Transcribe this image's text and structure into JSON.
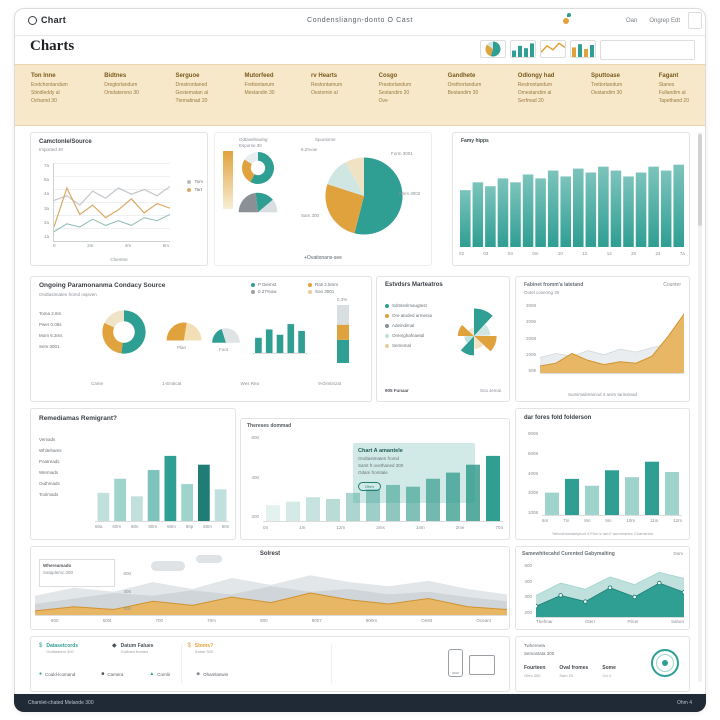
{
  "theme": {
    "teal": "#2f9e93",
    "teal_dark": "#1f7d76",
    "teal_light": "#bfe0dc",
    "orange": "#e0a23c",
    "band": "#f6e8c8"
  },
  "header": {
    "logo_text": "Chart",
    "center_title": "Condensliangn-donto O Cast",
    "link_1": "Oan",
    "link_2": "Ongrep Edt"
  },
  "subheader": {
    "title": "Charts"
  },
  "categories": [
    {
      "heading": "Ton Inne",
      "a": "Eretchontandum",
      "b": "Stindleddy al",
      "c": "Ochamd 30"
    },
    {
      "heading": "Bidtnes",
      "a": "Dregtorlandum",
      "b": "Omdaterono 30",
      "c": ""
    },
    {
      "heading": "Serguoe",
      "a": "Drestrontaned",
      "b": "Gestematan al",
      "c": "Ttematinad 20"
    },
    {
      "heading": "Mutorfeed",
      "a": "Frettontanum",
      "b": "Mestandin 30",
      "c": ""
    },
    {
      "heading": "rv Hearts",
      "a": "Restontamum",
      "b": "Oestomin al",
      "c": ""
    },
    {
      "heading": "Cosgo",
      "a": "Prestorlandum",
      "b": "Sestandim 20",
      "c": "Ove"
    },
    {
      "heading": "Gandhete",
      "a": "Orethortandum",
      "b": "Bestandim 30",
      "c": ""
    },
    {
      "heading": "Odlongy had",
      "a": "Restrontandum",
      "b": "Omestandim al",
      "c": "Serfmad 20"
    },
    {
      "heading": "Sputtoase",
      "a": "Trettortandum",
      "b": "Oestandim 30",
      "c": ""
    },
    {
      "heading": "Fagant",
      "a": "Stanes",
      "b": "Fullandim al",
      "c": "Tapethand 20"
    }
  ],
  "thumbs": {
    "t1": {
      "type": "pie",
      "inner": 0,
      "slices": [
        {
          "v": 55,
          "c": "#2f9e93"
        },
        {
          "v": 30,
          "c": "#e0a23c"
        },
        {
          "v": 15,
          "c": "#cfe6e2"
        }
      ]
    },
    "t2": {
      "type": "bars",
      "vw": 24,
      "vh": 16,
      "ymax": 100,
      "gap": 1,
      "color": "#2f9e93",
      "values": [
        40,
        70,
        55,
        85
      ]
    },
    "t3": {
      "type": "line",
      "vw": 24,
      "vh": 16,
      "ymax": 100,
      "series": [
        {
          "color": "#e0a23c",
          "w": 1.5,
          "values": [
            30,
            70,
            45,
            85,
            60
          ]
        }
      ]
    },
    "t4": {
      "type": "bars",
      "vw": 24,
      "vh": 16,
      "ymax": 100,
      "gap": 1,
      "colors": [
        "#e0a23c",
        "#2f9e93"
      ],
      "values": [
        60,
        80,
        50,
        75
      ]
    }
  },
  "cards": {
    "a": {
      "title": "Camctonle/Source",
      "subtitle": "Imported 30",
      "bottom": "Chemtre",
      "yticks": [
        "7a",
        "5a",
        "4a",
        "3a",
        "2a",
        "1a"
      ],
      "xticks": [
        "0",
        "2m",
        "4m",
        "6m"
      ],
      "legend": [
        {
          "c": "#b9bdc2",
          "t": "Tom"
        },
        {
          "c": "#d9a964",
          "t": "Tart"
        }
      ],
      "chart": {
        "type": "line",
        "vw": 116,
        "vh": 78,
        "ymax": 100,
        "series": [
          {
            "color": "#c2c6ca",
            "w": 1.2,
            "values": [
              52,
              58,
              46,
              64,
              55,
              68,
              60,
              66,
              58,
              70
            ]
          },
          {
            "color": "#d9a964",
            "w": 1.2,
            "values": [
              18,
              68,
              34,
              46,
              30,
              40,
              54,
              36,
              48,
              42
            ]
          },
          {
            "color": "#8fbcb6",
            "w": 1,
            "values": [
              12,
              22,
              18,
              28,
              20,
              26,
              20,
              30,
              26,
              34
            ]
          }
        ]
      }
    },
    "b": {
      "label1": "Odtaseltowing",
      "label2": "Esporse 30",
      "top": "Spuntome",
      "caption": "+Ovationans-see",
      "labels": [
        "6.2%ow",
        "Form 3001",
        "8mm 3002",
        "Sam 300"
      ],
      "vbar": {
        "type": "bars",
        "vw": 10,
        "vh": 58,
        "ymax": 100,
        "gap": 0,
        "grad": [
          "#e0a23c",
          "#f8eed6"
        ],
        "values": [
          100
        ]
      },
      "donut": {
        "type": "pie",
        "inner": 0.45,
        "slices": [
          {
            "v": 58,
            "c": "#2f9e93"
          },
          {
            "v": 26,
            "c": "#e0a23c"
          },
          {
            "v": 16,
            "c": "#e8edef"
          }
        ]
      },
      "gauge": {
        "type": "gauge",
        "slices": [
          {
            "v": 46,
            "c": "#8a9096"
          },
          {
            "v": 32,
            "c": "#2f9e93"
          },
          {
            "v": 22,
            "c": "#d9dee1"
          }
        ]
      },
      "pie": {
        "type": "pie",
        "inner": 0,
        "slices": [
          {
            "v": 54,
            "c": "#2f9e93"
          },
          {
            "v": 26,
            "c": "#e0a23c"
          },
          {
            "v": 12,
            "c": "#cfe6e2"
          },
          {
            "v": 8,
            "c": "#f0e2c4"
          }
        ]
      }
    },
    "c": {
      "title": "Famy hipps",
      "xticks": [
        "02",
        "03",
        "04",
        "0m",
        "10",
        "12",
        "14",
        "20",
        "24",
        "7a"
      ],
      "chart": {
        "type": "bars",
        "vw": 226,
        "vh": 98,
        "ymax": 100,
        "gap": 1,
        "grad": [
          "#7cc4bc",
          "#2f9e93"
        ],
        "values": [
          58,
          66,
          62,
          70,
          66,
          74,
          70,
          78,
          72,
          80,
          76,
          82,
          78,
          72,
          76,
          82,
          78,
          84
        ]
      }
    },
    "d": {
      "title": "Ongoing Paramonanma Condacy Source",
      "subtitle": "Ondtastmaten fromd ospiven",
      "legend": [
        {
          "c": "#2f9e93",
          "t": "P Diemst"
        },
        {
          "c": "#e0a23c",
          "t": "Rati 2.5mm"
        },
        {
          "c": "#9aa0a5",
          "t": "0.27%ow"
        },
        {
          "c": "#e6cf9a",
          "t": "Son 3001"
        }
      ],
      "side": [
        "Toma 2.6m",
        "Pwer 0.05s",
        "Mom 6.3ms",
        "Sem 3001"
      ],
      "gauge1_label": "Plan",
      "gauge2_label": "Foot",
      "stack_label": "0.3%",
      "xticks": [
        "Came",
        "1-Emticat",
        "Wes Rea",
        "9-Dimtinzat"
      ],
      "donut": {
        "type": "pie",
        "inner": 0.5,
        "slices": [
          {
            "v": 52,
            "c": "#2f9e93"
          },
          {
            "v": 30,
            "c": "#e0a23c"
          },
          {
            "v": 18,
            "c": "#efe3c8"
          }
        ]
      },
      "gauge1": {
        "type": "gauge",
        "slices": [
          {
            "v": 55,
            "c": "#e0a23c"
          },
          {
            "v": 45,
            "c": "#f3dfb6"
          }
        ]
      },
      "gauge2": {
        "type": "gauge",
        "slices": [
          {
            "v": 40,
            "c": "#2f9e93"
          },
          {
            "v": 60,
            "c": "#dfe3e5"
          }
        ]
      },
      "bars": {
        "type": "bars",
        "vw": 52,
        "vh": 36,
        "ymax": 100,
        "gap": 2,
        "color": "#2f9e93",
        "values": [
          40,
          62,
          48,
          76,
          58
        ]
      },
      "stack": {
        "type": "stack",
        "vw": 12,
        "vh": 56,
        "segs": [
          {
            "v": 40,
            "c": "#2f9e93"
          },
          {
            "v": 26,
            "c": "#e0a23c"
          },
          {
            "v": 34,
            "c": "#d9dee1"
          }
        ]
      }
    },
    "e": {
      "title": "Estvdsrs Marteatros",
      "caption": "905 Funaar",
      "caption2": "Sca Jemai",
      "bullets": [
        {
          "c": "#2f9e93",
          "t": "Sdmteslmaugtest"
        },
        {
          "c": "#e0a23c",
          "t": "Ore atoded armenia"
        },
        {
          "c": "#8a9096",
          "t": "Adeindimal"
        },
        {
          "c": "#bfe0dc",
          "t": "Oremghafnaetal"
        },
        {
          "c": "#e6cf9a",
          "t": "Sememal"
        }
      ],
      "rose": {
        "type": "rose",
        "max": 36,
        "values": [
          34,
          20,
          28,
          16,
          24,
          12,
          20,
          10
        ],
        "colors": [
          "#2f9e93",
          "#cfe6e2",
          "#e0a23c",
          "#f0e2c4",
          "#2f9e93",
          "#bfe0dc",
          "#e0a23c",
          "#efe8da"
        ]
      }
    },
    "f": {
      "corner": "Counter",
      "title": "Fabinet fromm'a latetand",
      "subtitle": "Ootel covering 30",
      "yticks": [
        "3008",
        "2006",
        "2008",
        "1006",
        "508"
      ],
      "caption": "Sumimalimamod 4 anim tarinsinad",
      "chart": {
        "type": "line",
        "vw": 144,
        "vh": 70,
        "ymax": 100,
        "series": [
          {
            "fill": "#e9edef",
            "color": "#d4d9dc",
            "w": 0.8,
            "values": [
              22,
              28,
              24,
              32,
              26,
              34,
              30,
              36,
              42,
              50
            ]
          },
          {
            "fill": "#e8b765",
            "color": "#d1922f",
            "w": 1,
            "values": [
              10,
              14,
              28,
              18,
              12,
              16,
              14,
              24,
              52,
              84
            ]
          }
        ]
      }
    },
    "g": {
      "title": "Remediamas Remigrant?",
      "rows": [
        "Vemads",
        "Whitehams",
        "Poatreads",
        "Wermads",
        "Outhmads",
        "Toolmads"
      ],
      "xticks": [
        "60a",
        "60m",
        "60n",
        "80m",
        "60m",
        "60p",
        "60m",
        "60s"
      ],
      "chart": {
        "type": "bars",
        "vw": 134,
        "vh": 88,
        "ymax": 100,
        "gap": 2.5,
        "colors": [
          "#bfe0dc",
          "#9fd4cd",
          "#bfe0dc",
          "#7cc4bc",
          "#2f9e93",
          "#9fd4cd",
          "#1f7d76",
          "#bfe0dc"
        ],
        "values": [
          32,
          48,
          28,
          58,
          74,
          42,
          64,
          36
        ]
      }
    },
    "h": {
      "top": "Thereses dommad",
      "panel_title": "Chart A amantele",
      "panel_lines": [
        "Ondtastmaten fromd",
        "Samt ft ovethaned 300",
        "Odam fromtale"
      ],
      "panel_pill": "Ohm",
      "yticks": [
        "600",
        "400",
        "200"
      ],
      "xticks": [
        "04",
        "1m",
        "12m",
        "2ms",
        "14m",
        "2me",
        "704"
      ],
      "chart": {
        "type": "bars",
        "vw": 240,
        "vh": 88,
        "ymax": 100,
        "gap": 3,
        "colors": [
          "#e3f1ef",
          "#d5eae7",
          "#c7e3df",
          "#b9dcd7",
          "#abd5cf",
          "#9dcec7",
          "#8fc7bf",
          "#81c0b7",
          "#73b9af",
          "#65b2a7",
          "#57ab9f",
          "#2f9e93"
        ],
        "values": [
          18,
          22,
          27,
          25,
          32,
          36,
          41,
          39,
          48,
          55,
          64,
          74
        ]
      }
    },
    "i": {
      "title": "dar fores fold folderson",
      "yticks": [
        "9008",
        "6008",
        "4008",
        "3008",
        "1008"
      ],
      "xticks": [
        "6m",
        "7m",
        "8m",
        "9m",
        "10m",
        "11m",
        "12m"
      ],
      "caption": "Yellowhamlaleyfoot 4 Fhm k ram? aummartec Chamlems",
      "chart": {
        "type": "bars",
        "vw": 140,
        "vh": 86,
        "ymax": 100,
        "gap": 3,
        "colors": [
          "#9fd4cd",
          "#2f9e93",
          "#9fd4cd",
          "#2f9e93",
          "#9fd4cd",
          "#2f9e93",
          "#9fd4cd"
        ],
        "values": [
          26,
          42,
          34,
          52,
          44,
          62,
          50
        ]
      }
    },
    "j": {
      "title": "Solrest",
      "box": [
        "Whereamado",
        "Sataplemc 300"
      ],
      "yticks": [
        "600",
        "400",
        "200"
      ],
      "xticks": [
        "600",
        "600t",
        "700",
        "70m",
        "800",
        "8007",
        "900m",
        "Oe84",
        "Oceant"
      ],
      "chart": {
        "type": "line",
        "vw": 472,
        "vh": 48,
        "ymax": 70,
        "series": [
          {
            "fill": "#e2e6e8",
            "values": [
              28,
              40,
              34,
              48,
              38,
              54,
              44,
              58,
              48,
              42,
              50,
              38,
              30
            ]
          },
          {
            "fill": "#cfd5d8",
            "values": [
              16,
              24,
              32,
              28,
              36,
              30,
              42,
              34,
              38,
              30,
              34,
              26,
              20
            ]
          },
          {
            "fill": "#e8b765",
            "color": "#d1922f",
            "w": 1,
            "values": [
              6,
              12,
              8,
              20,
              14,
              26,
              18,
              32,
              22,
              16,
              24,
              12,
              8
            ]
          }
        ]
      }
    },
    "k": {
      "title": "Samewhitecahd Curented Gabymalting",
      "corner": "Dam",
      "yticks": [
        "600",
        "400",
        "300",
        "200"
      ],
      "xticks": [
        "Thefmar",
        "Oterr",
        "Pilcer",
        "Sahen"
      ],
      "chart": {
        "type": "line",
        "vw": 148,
        "vh": 54,
        "ymax": 70,
        "series": [
          {
            "fill": "#bfe0dc",
            "color": "#9fd4cd",
            "w": 0.8,
            "values": [
              28,
              44,
              36,
              52,
              42,
              58,
              50
            ]
          },
          {
            "fill": "#2f9e93",
            "color": "#1f7d76",
            "w": 0.8,
            "dots": true,
            "values": [
              14,
              28,
              20,
              38,
              26,
              44,
              32
            ]
          }
        ]
      }
    },
    "l": {
      "row1": [
        {
          "icon": "$",
          "ic": "#2f9e93",
          "label": "Datasetcords",
          "sub": "Ondtastem 300"
        },
        {
          "icon": "◆",
          "ic": "#4a5258",
          "label": "Datum Falues",
          "sub": "Gotham fromes"
        },
        {
          "icon": "$",
          "ic": "#e0a23c",
          "label": "Stoms?",
          "sub": "Same 300"
        }
      ],
      "row2": [
        {
          "icon": "●",
          "ic": "#2f9e93",
          "label": "Could-lcomand"
        },
        {
          "icon": "■",
          "ic": "#4a5258",
          "label": "Camera"
        },
        {
          "icon": "▲",
          "ic": "#2f9e93",
          "label": "Comlir"
        },
        {
          "icon": "◆",
          "ic": "#8a9096",
          "label": "Ohamlanwin"
        }
      ]
    },
    "m": {
      "lines": [
        "Twhereww",
        "Semastata 300"
      ],
      "cols": [
        {
          "h": "Fourteen",
          "v": "Ohm 300"
        },
        {
          "h": "Oval fromes",
          "v": "Sam 20"
        },
        {
          "h": "Some",
          "v": "Od 4"
        }
      ]
    }
  },
  "footer": {
    "left": "Chamlet-chated Melande 300",
    "right": "Ohm 4"
  }
}
